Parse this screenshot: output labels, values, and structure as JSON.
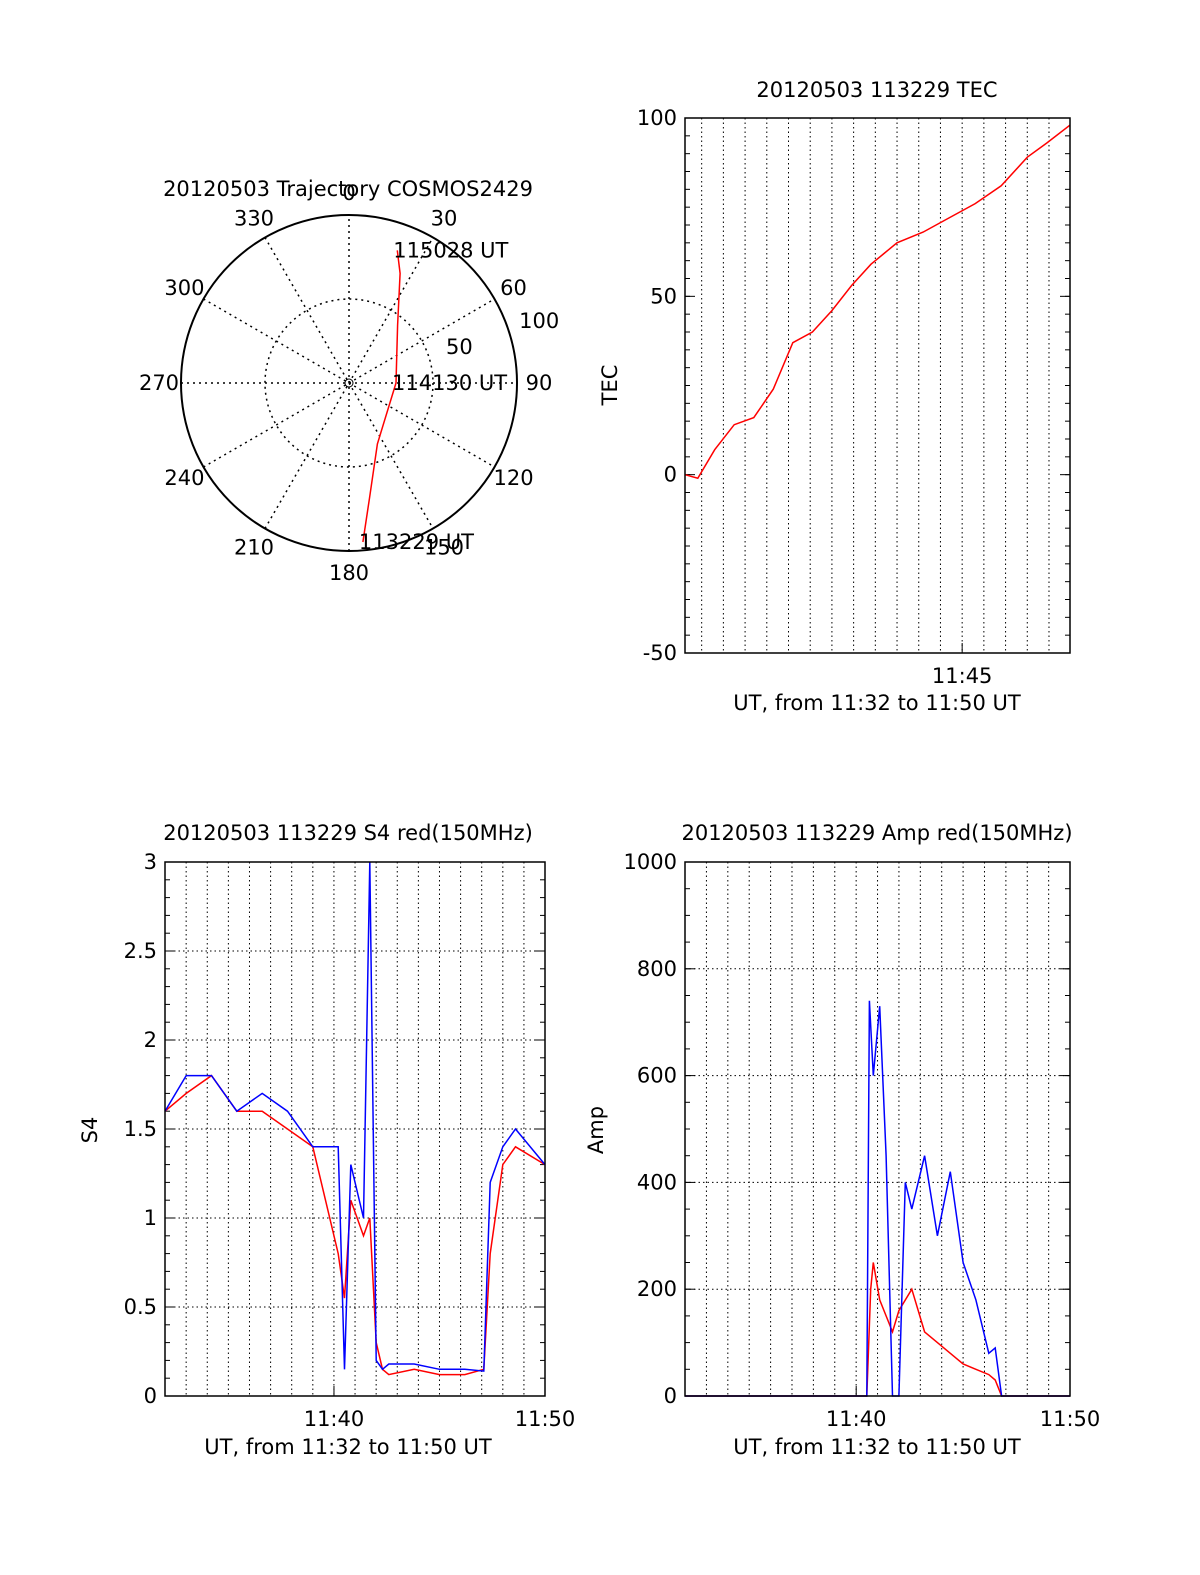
{
  "chart_data": [
    {
      "type": "polar",
      "title": "20120503 Trajectory COSMOS2429",
      "angle_labels": [
        "0",
        "30",
        "60",
        "90",
        "120",
        "150",
        "180",
        "210",
        "240",
        "270",
        "300",
        "330"
      ],
      "radial_labels": [
        "50",
        "100"
      ],
      "series": [
        {
          "color": "#ff0000",
          "points": [
            {
              "az": 175,
              "r": 95
            },
            {
              "az": 170,
              "r": 70
            },
            {
              "az": 155,
              "r": 40
            },
            {
              "az": 90,
              "r": 28
            },
            {
              "az": 40,
              "r": 45
            },
            {
              "az": 25,
              "r": 72
            },
            {
              "az": 20,
              "r": 84
            }
          ]
        }
      ],
      "annotations": [
        {
          "text": "115028 UT",
          "az": 20,
          "r": 84
        },
        {
          "text": "114130 UT",
          "az": 90,
          "r": 28
        },
        {
          "text": "113229 UT",
          "az": 175,
          "r": 95
        }
      ]
    },
    {
      "type": "line",
      "title": "20120503 113229 TEC",
      "xlabel": "UT, from 11:32 to 11:50 UT",
      "ylabel": "TEC",
      "xlim": [
        11.5372,
        11.8328
      ],
      "ylim": [
        -50,
        100
      ],
      "xticks": [
        {
          "value": 11.75,
          "label": "11:45"
        }
      ],
      "yticks": [
        -50,
        0,
        50,
        100
      ],
      "grid": "vertical-dotted",
      "series": [
        {
          "color": "#ff0000",
          "x": [
            11.5372,
            11.547,
            11.56,
            11.575,
            11.59,
            11.605,
            11.62,
            11.635,
            11.65,
            11.665,
            11.68,
            11.69,
            11.7,
            11.72,
            11.74,
            11.76,
            11.78,
            11.8,
            11.815,
            11.8328
          ],
          "y": [
            0,
            -1,
            7,
            14,
            16,
            24,
            37,
            40,
            46,
            53,
            59,
            62,
            65,
            68,
            72,
            76,
            81,
            89,
            93,
            98
          ]
        }
      ]
    },
    {
      "type": "line",
      "title": "20120503 113229 S4 red(150MHz)",
      "xlabel": "UT, from 11:32 to 11:50 UT",
      "ylabel": "S4",
      "xlim": [
        11.5333,
        11.8333
      ],
      "ylim": [
        0,
        3
      ],
      "xticks": [
        {
          "value": 11.6667,
          "label": "11:40"
        },
        {
          "value": 11.8333,
          "label": "11:50"
        }
      ],
      "yticks": [
        0,
        0.5,
        1,
        1.5,
        2,
        2.5,
        3
      ],
      "grid": "dotted",
      "series": [
        {
          "color": "#ff0000",
          "x": [
            11.5333,
            11.55,
            11.57,
            11.59,
            11.61,
            11.63,
            11.65,
            11.66,
            11.67,
            11.675,
            11.68,
            11.69,
            11.695,
            11.7,
            11.705,
            11.71,
            11.73,
            11.75,
            11.77,
            11.785,
            11.79,
            11.8,
            11.81,
            11.8333
          ],
          "y": [
            1.6,
            1.7,
            1.8,
            1.6,
            1.6,
            1.5,
            1.4,
            1.1,
            0.8,
            0.55,
            1.1,
            0.9,
            1.0,
            0.3,
            0.15,
            0.12,
            0.15,
            0.12,
            0.12,
            0.15,
            0.8,
            1.3,
            1.4,
            1.3
          ]
        },
        {
          "color": "#0000ff",
          "x": [
            11.5333,
            11.55,
            11.57,
            11.59,
            11.61,
            11.63,
            11.65,
            11.66,
            11.67,
            11.675,
            11.68,
            11.69,
            11.695,
            11.7,
            11.705,
            11.71,
            11.73,
            11.75,
            11.77,
            11.785,
            11.79,
            11.8,
            11.81,
            11.8333
          ],
          "y": [
            1.6,
            1.8,
            1.8,
            1.6,
            1.7,
            1.6,
            1.4,
            1.4,
            1.4,
            0.15,
            1.3,
            1.0,
            3.0,
            0.2,
            0.15,
            0.18,
            0.18,
            0.15,
            0.15,
            0.14,
            1.2,
            1.4,
            1.5,
            1.3
          ]
        }
      ]
    },
    {
      "type": "line",
      "title": "20120503 113229 Amp red(150MHz)",
      "xlabel": "UT, from 11:32 to 11:50 UT",
      "ylabel": "Amp",
      "xlim": [
        11.5333,
        11.8333
      ],
      "ylim": [
        0,
        1000
      ],
      "xticks": [
        {
          "value": 11.6667,
          "label": "11:40"
        },
        {
          "value": 11.8333,
          "label": "11:50"
        }
      ],
      "yticks": [
        0,
        200,
        400,
        600,
        800,
        1000
      ],
      "grid": "dotted",
      "series": [
        {
          "color": "#ff0000",
          "x": [
            11.5333,
            11.6,
            11.675,
            11.678,
            11.68,
            11.685,
            11.69,
            11.695,
            11.7,
            11.71,
            11.72,
            11.73,
            11.74,
            11.75,
            11.76,
            11.77,
            11.775,
            11.78,
            11.8333
          ],
          "y": [
            0,
            0,
            0,
            200,
            250,
            180,
            150,
            120,
            160,
            200,
            120,
            100,
            80,
            60,
            50,
            40,
            30,
            0,
            0
          ]
        },
        {
          "color": "#0000ff",
          "x": [
            11.5333,
            11.6,
            11.675,
            11.677,
            11.68,
            11.685,
            11.69,
            11.695,
            11.7,
            11.705,
            11.71,
            11.72,
            11.73,
            11.74,
            11.75,
            11.76,
            11.77,
            11.775,
            11.78,
            11.8333
          ],
          "y": [
            0,
            0,
            0,
            740,
            600,
            730,
            450,
            0,
            0,
            400,
            350,
            450,
            300,
            420,
            250,
            180,
            80,
            90,
            0,
            0
          ]
        }
      ]
    }
  ]
}
